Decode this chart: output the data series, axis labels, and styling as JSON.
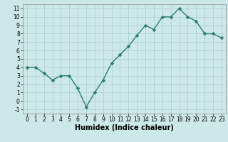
{
  "x": [
    0,
    1,
    2,
    3,
    4,
    5,
    6,
    7,
    8,
    9,
    10,
    11,
    12,
    13,
    14,
    15,
    16,
    17,
    18,
    19,
    20,
    21,
    22,
    23
  ],
  "y": [
    4,
    4,
    3.3,
    2.5,
    3,
    3,
    1.5,
    -0.7,
    1,
    2.5,
    4.5,
    5.5,
    6.5,
    7.8,
    9,
    8.5,
    10,
    10,
    11,
    10,
    9.5,
    8,
    8,
    7.5
  ],
  "line_color": "#2e7d6e",
  "marker_color": "#2e7d6e",
  "bg_color": "#cce8e8",
  "grid_color": "#aacece",
  "xlabel": "Humidex (Indice chaleur)",
  "xlim": [
    -0.5,
    23.5
  ],
  "ylim": [
    -1.5,
    11.5
  ],
  "yticks": [
    -1,
    0,
    1,
    2,
    3,
    4,
    5,
    6,
    7,
    8,
    9,
    10,
    11
  ],
  "xticks": [
    0,
    1,
    2,
    3,
    4,
    5,
    6,
    7,
    8,
    9,
    10,
    11,
    12,
    13,
    14,
    15,
    16,
    17,
    18,
    19,
    20,
    21,
    22,
    23
  ],
  "marker_size": 2.5,
  "line_width": 1.0,
  "tick_fontsize": 5.5,
  "xlabel_fontsize": 7.0
}
